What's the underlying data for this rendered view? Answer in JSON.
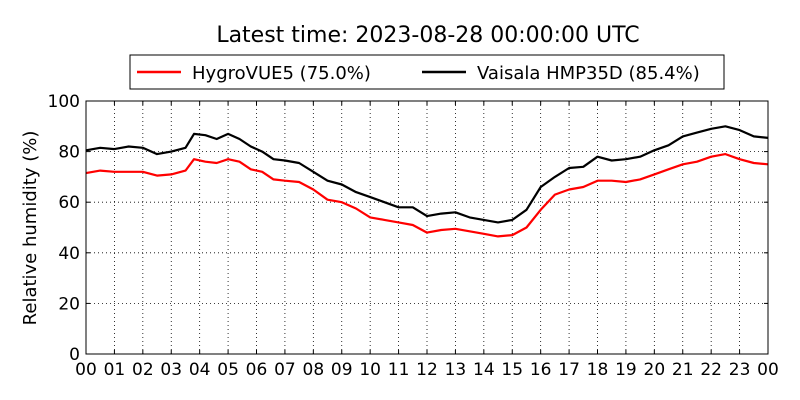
{
  "chart_data": {
    "type": "line",
    "title": "Latest time: 2023-08-28 00:00:00 UTC",
    "xlabel": "",
    "ylabel": "Relative humidity (%)",
    "xlim": [
      0,
      24
    ],
    "ylim": [
      0,
      100
    ],
    "grid": true,
    "legend_position": "top",
    "x_tick_labels": [
      "00",
      "01",
      "02",
      "03",
      "04",
      "05",
      "06",
      "07",
      "08",
      "09",
      "10",
      "11",
      "12",
      "13",
      "14",
      "15",
      "16",
      "17",
      "18",
      "19",
      "20",
      "21",
      "22",
      "23",
      "00"
    ],
    "y_tick_labels": [
      "0",
      "20",
      "40",
      "60",
      "80",
      "100"
    ],
    "x": [
      0,
      0.5,
      1,
      1.5,
      2,
      2.5,
      3,
      3.5,
      3.8,
      4.2,
      4.6,
      5,
      5.4,
      5.8,
      6.2,
      6.6,
      7,
      7.5,
      8,
      8.5,
      9,
      9.5,
      10,
      10.5,
      11,
      11.5,
      12,
      12.5,
      13,
      13.5,
      14,
      14.5,
      15,
      15.5,
      16,
      16.5,
      17,
      17.5,
      18,
      18.5,
      19,
      19.5,
      20,
      20.5,
      21,
      21.5,
      22,
      22.5,
      23,
      23.5,
      24
    ],
    "series": [
      {
        "name": "HygroVUE5 (75.0%)",
        "color": "#ff0000",
        "values": [
          71.5,
          72.5,
          72,
          72,
          72,
          70.5,
          71,
          72.5,
          77,
          76,
          75.5,
          77,
          76,
          73,
          72,
          69,
          68.5,
          68,
          65,
          61,
          60,
          57.5,
          54,
          53,
          52,
          51,
          48,
          49,
          49.5,
          48.5,
          47.5,
          46.5,
          47,
          50,
          57,
          63,
          65,
          66,
          68.5,
          68.5,
          68,
          69,
          71,
          73,
          75,
          76,
          78,
          79,
          77,
          75.5,
          75
        ]
      },
      {
        "name": "Vaisala HMP35D (85.4%)",
        "color": "#000000",
        "values": [
          80.5,
          81.5,
          81,
          82,
          81.5,
          79,
          80,
          81.5,
          87,
          86.5,
          85,
          87,
          85,
          82,
          80,
          77,
          76.5,
          75.5,
          72,
          68.5,
          67,
          64,
          62,
          60,
          58,
          58,
          54.5,
          55.5,
          56,
          54,
          53,
          52,
          53,
          57,
          66,
          70,
          73.5,
          74,
          78,
          76.5,
          77,
          78,
          80.5,
          82.5,
          86,
          87.5,
          89,
          90,
          88.5,
          86,
          85.4
        ]
      }
    ]
  }
}
